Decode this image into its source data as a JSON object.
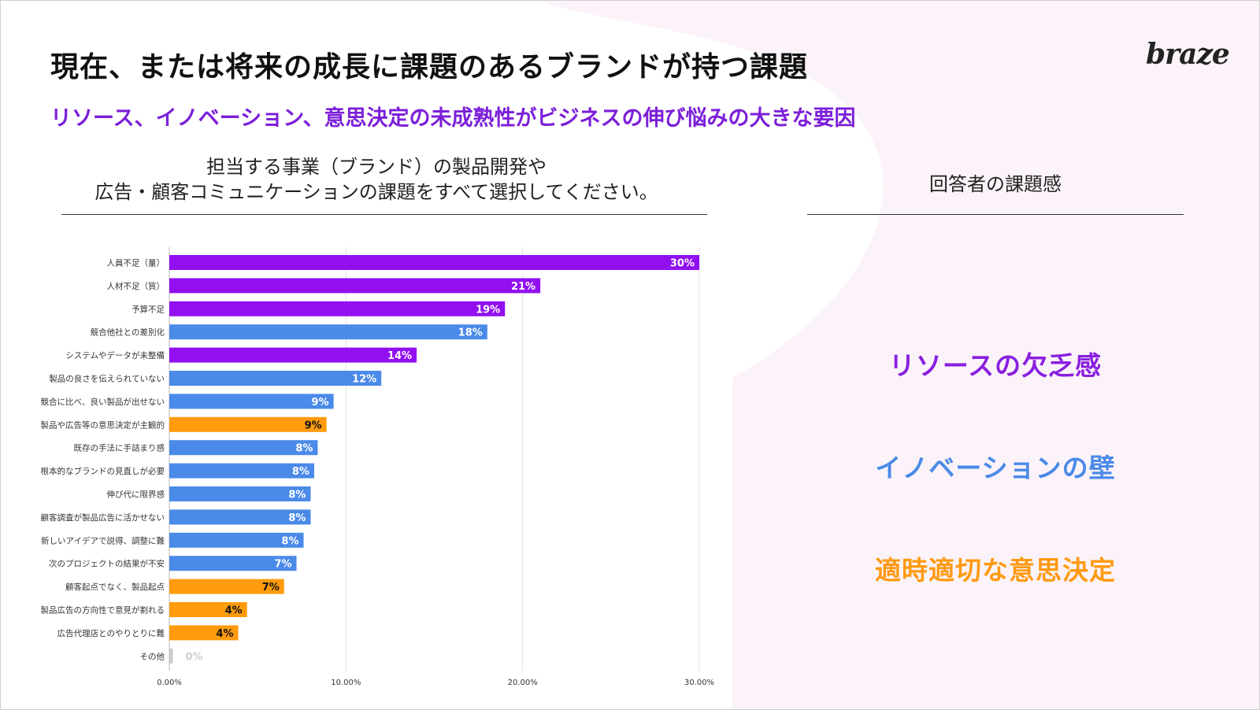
{
  "title": "現在、または将来の成長に課題のあるブランドが持つ課題",
  "subtitle": "リソース、イノベーション、意思決定の未成熟性がビジネスの伸び悩みの大きな要因",
  "logo": "braze",
  "question": {
    "line1": "担当する事業（ブランド）の製品開発や",
    "line2": "広告・顧客コミュニケーションの課題をすべて選択してください。"
  },
  "respondent": {
    "heading": "回答者の課題感",
    "categories": [
      {
        "label": "リソースの欠乏感",
        "color": "#8a1fe0"
      },
      {
        "label": "イノベーションの壁",
        "color": "#4a8ae8"
      },
      {
        "label": "適時適切な意思決定",
        "color": "#ff9a12"
      }
    ]
  },
  "colors": {
    "resource": "#9210f0",
    "innovation": "#4a8ae8",
    "decision": "#ff9b0d",
    "other": "#cccccc"
  },
  "chart_data": {
    "type": "bar",
    "orientation": "horizontal",
    "title": "",
    "xlabel": "",
    "ylabel": "",
    "xlim": [
      0,
      0.3
    ],
    "x_ticks": [
      0,
      0.1,
      0.2,
      0.3
    ],
    "x_tick_labels": [
      "0.00%",
      "10.00%",
      "20.00%",
      "30.00%"
    ],
    "grid": true,
    "categories": [
      "人員不足（量）",
      "人材不足（質）",
      "予算不足",
      "競合他社との差別化",
      "システムやデータが未整備",
      "製品の良さを伝えられていない",
      "競合に比べ、良い製品が出せない",
      "製品や広告等の意思決定が主観的",
      "既存の手法に手詰まり感",
      "根本的なブランドの見直しが必要",
      "伸び代に限界感",
      "顧客調査が製品広告に活かせない",
      "新しいアイデアで説得、調整に難",
      "次のプロジェクトの結果が不安",
      "顧客起点でなく、製品起点",
      "製品広告の方向性で意見が割れる",
      "広告代理店とのやりとりに難",
      "その他"
    ],
    "values": [
      0.3,
      0.21,
      0.19,
      0.18,
      0.14,
      0.12,
      0.093,
      0.089,
      0.084,
      0.082,
      0.08,
      0.08,
      0.076,
      0.072,
      0.065,
      0.044,
      0.039,
      0.002
    ],
    "data_labels": [
      "30%",
      "21%",
      "19%",
      "18%",
      "14%",
      "12%",
      "9%",
      "9%",
      "8%",
      "8%",
      "8%",
      "8%",
      "8%",
      "7%",
      "7%",
      "4%",
      "4%",
      "0%"
    ],
    "groups": [
      "resource",
      "resource",
      "resource",
      "innovation",
      "resource",
      "innovation",
      "innovation",
      "decision",
      "innovation",
      "innovation",
      "innovation",
      "innovation",
      "innovation",
      "innovation",
      "decision",
      "decision",
      "decision",
      "other"
    ]
  }
}
